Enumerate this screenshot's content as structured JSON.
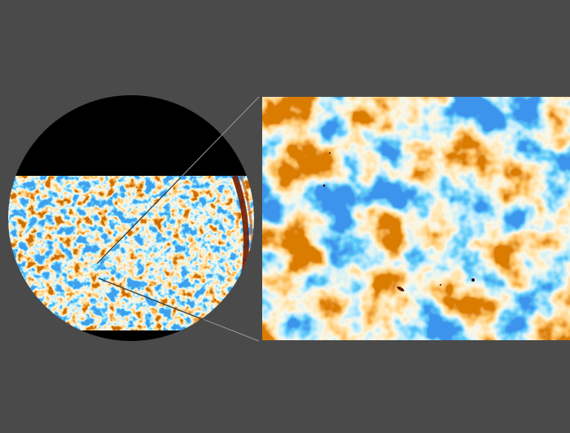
{
  "colors": {
    "background": "#4a4a4a",
    "mask": "#000000",
    "cold": "#1e6fd9",
    "neutral": "#f4eed0",
    "hot": "#f08c1e",
    "foreground_arc": "#6e1a00",
    "zoom_lines": "#9a9a9a"
  },
  "figure": {
    "left_panel": "full-sky-map-disc",
    "right_panel": "zoomed-map-region",
    "colormap": [
      "dark-blue",
      "light-blue",
      "cream",
      "orange",
      "dark-red"
    ]
  }
}
